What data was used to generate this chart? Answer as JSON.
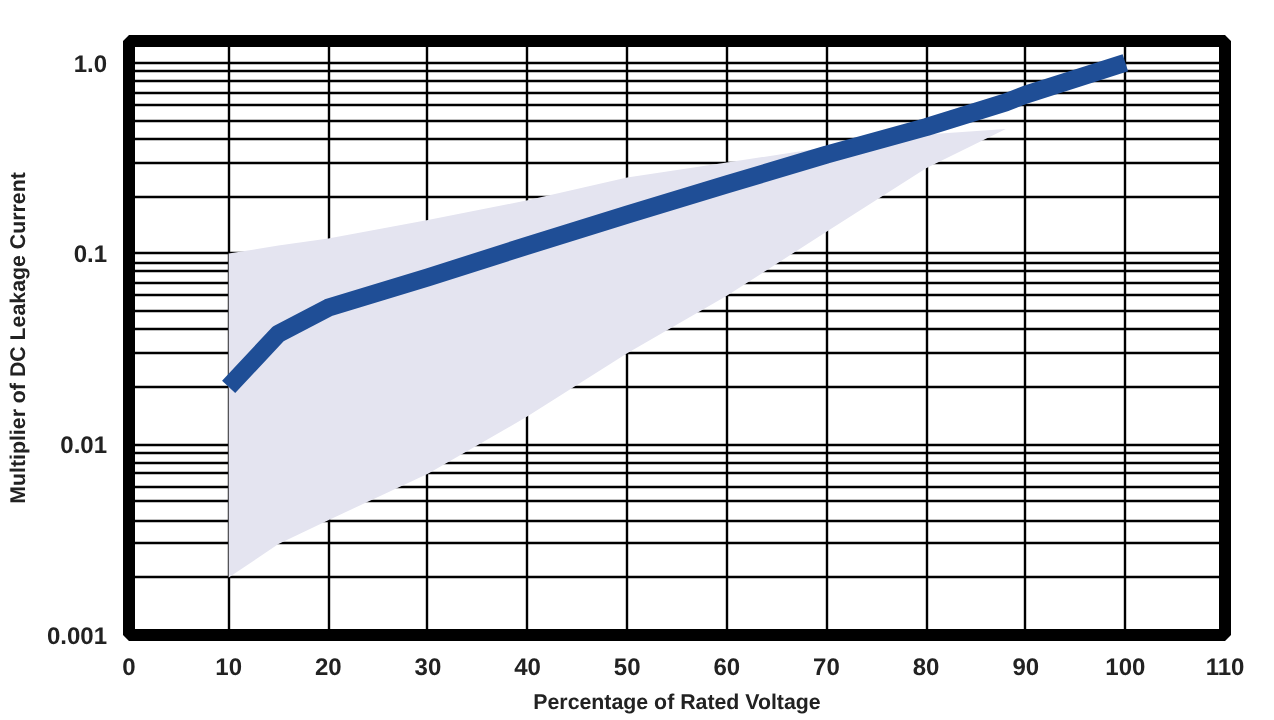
{
  "chart_data": {
    "type": "line",
    "xlabel": "Percentage of Rated Voltage",
    "ylabel": "Multiplier of DC Leakage Current",
    "x": [
      10,
      15,
      20,
      30,
      40,
      50,
      60,
      70,
      80,
      88,
      90,
      100
    ],
    "series": [
      {
        "color": "#1f4e96",
        "values": [
          0.02,
          0.038,
          0.052,
          0.075,
          0.11,
          0.16,
          0.23,
          0.33,
          0.46,
          0.62,
          0.68,
          1.0
        ],
        "lower": [
          0.002,
          0.003,
          0.004,
          0.007,
          0.014,
          0.03,
          0.06,
          0.13,
          0.28,
          0.45,
          null,
          null
        ],
        "upper": [
          0.1,
          0.11,
          0.12,
          0.15,
          0.19,
          0.25,
          0.3,
          0.36,
          0.42,
          0.45,
          null,
          null
        ]
      }
    ],
    "log": "y",
    "xlim": [
      0,
      110
    ],
    "ylim": [
      0.001,
      1.3
    ],
    "xticks": [
      0,
      10,
      20,
      30,
      40,
      50,
      60,
      70,
      80,
      90,
      100,
      110
    ],
    "yticks": [
      {
        "value": 0.001,
        "label": "0.001"
      },
      {
        "value": 0.002,
        "label": null
      },
      {
        "value": 0.003,
        "label": null
      },
      {
        "value": 0.004,
        "label": null
      },
      {
        "value": 0.005,
        "label": null
      },
      {
        "value": 0.006,
        "label": null
      },
      {
        "value": 0.007,
        "label": null
      },
      {
        "value": 0.008,
        "label": null
      },
      {
        "value": 0.009,
        "label": null
      },
      {
        "value": 0.01,
        "label": "0.01"
      },
      {
        "value": 0.02,
        "label": null
      },
      {
        "value": 0.03,
        "label": null
      },
      {
        "value": 0.04,
        "label": null
      },
      {
        "value": 0.05,
        "label": null
      },
      {
        "value": 0.06,
        "label": null
      },
      {
        "value": 0.07,
        "label": null
      },
      {
        "value": 0.08,
        "label": null
      },
      {
        "value": 0.09,
        "label": null
      },
      {
        "value": 0.1,
        "label": "0.1"
      },
      {
        "value": 0.2,
        "label": null
      },
      {
        "value": 0.3,
        "label": null
      },
      {
        "value": 0.4,
        "label": null
      },
      {
        "value": 0.5,
        "label": null
      },
      {
        "value": 0.6,
        "label": null
      },
      {
        "value": 0.7,
        "label": null
      },
      {
        "value": 0.8,
        "label": null
      },
      {
        "value": 0.9,
        "label": null
      },
      {
        "value": 1,
        "label": "1.0"
      }
    ],
    "grid": true,
    "line_style": "solid"
  }
}
